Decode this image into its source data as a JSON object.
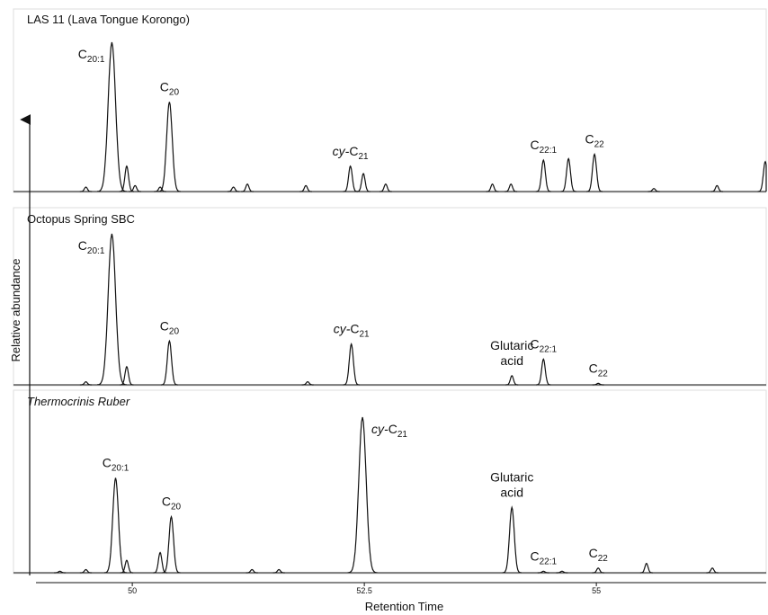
{
  "chart_data": [
    {
      "type": "peaks",
      "title": "LAS 11 (Lava Tongue Korongo)",
      "ylabel": "Relative abundance",
      "xlim": [
        49.03,
        56.83
      ],
      "ylim": [
        0,
        100
      ],
      "x": [
        49.5,
        49.78,
        49.94,
        50.03,
        50.4,
        50.3,
        51.09,
        51.24,
        51.87,
        52.35,
        52.49,
        52.73,
        53.88,
        54.08,
        54.43,
        54.7,
        54.98,
        55.62,
        56.3,
        56.82
      ],
      "values": [
        3,
        100,
        17,
        4,
        60,
        3,
        3,
        5,
        4,
        17,
        12,
        5,
        5,
        5,
        21,
        22,
        25,
        2,
        4,
        20
      ],
      "peak_labels": [
        null,
        {
          "main": "C",
          "sub": "20:1"
        },
        null,
        null,
        {
          "main": "C",
          "sub": "20"
        },
        null,
        null,
        null,
        null,
        {
          "pre": "cy-",
          "main": "C",
          "sub": "21"
        },
        null,
        null,
        null,
        null,
        {
          "main": "C",
          "sub": "22:1"
        },
        null,
        {
          "main": "C",
          "sub": "22"
        },
        null,
        null,
        null
      ]
    },
    {
      "type": "peaks",
      "title": "Octopus Spring SBC",
      "xlim": [
        49.03,
        56.83
      ],
      "ylim": [
        0,
        100
      ],
      "x": [
        49.5,
        49.78,
        49.94,
        50.4,
        51.89,
        52.36,
        54.09,
        54.43,
        55.02
      ],
      "values": [
        2,
        100,
        12,
        29,
        2,
        27,
        6,
        17,
        1
      ],
      "peak_labels": [
        null,
        {
          "main": "C",
          "sub": "20:1"
        },
        null,
        {
          "main": "C",
          "sub": "20"
        },
        null,
        {
          "pre": "cy-",
          "main": "C",
          "sub": "21"
        },
        {
          "lines": [
            "Glutaric",
            "acid"
          ]
        },
        {
          "main": "C",
          "sub": "22:1"
        },
        {
          "main": "C",
          "sub": "22"
        }
      ]
    },
    {
      "type": "peaks",
      "title": "Thermocrinis Ruber",
      "title_style": "italic",
      "xlim": [
        49.03,
        56.83
      ],
      "ylim": [
        0,
        100
      ],
      "xticks": [
        50,
        52.5,
        55
      ],
      "xlabel": "Retention Time",
      "x": [
        49.22,
        49.5,
        49.82,
        49.94,
        50.3,
        50.42,
        51.29,
        51.58,
        52.48,
        54.09,
        54.43,
        54.63,
        55.02,
        55.54,
        56.25
      ],
      "values": [
        1,
        2,
        61,
        8,
        13,
        36,
        2,
        2,
        100,
        42,
        1,
        1,
        3,
        6,
        3
      ],
      "peak_labels": [
        null,
        null,
        {
          "main": "C",
          "sub": "20:1"
        },
        null,
        null,
        {
          "main": "C",
          "sub": "20"
        },
        null,
        null,
        {
          "pre": "cy-",
          "main": "C",
          "sub": "21"
        },
        {
          "lines": [
            "Glutaric",
            "acid"
          ]
        },
        {
          "main": "C",
          "sub": "22:1"
        },
        null,
        {
          "main": "C",
          "sub": "22"
        },
        null,
        null
      ]
    }
  ]
}
